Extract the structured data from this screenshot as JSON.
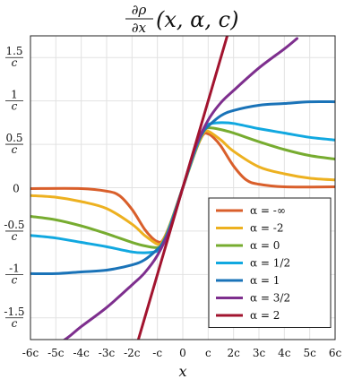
{
  "chart_data": {
    "type": "line",
    "title": {
      "num": "∂ρ",
      "den": "∂x",
      "rest": "(x, α, c)"
    },
    "xlabel": "x",
    "xlim": [
      -6,
      6
    ],
    "ylim": [
      -1.75,
      1.75
    ],
    "grid": true,
    "legend_position": "bottom-right",
    "x_ticks": [
      {
        "v": -6,
        "label": "-6c"
      },
      {
        "v": -5,
        "label": "-5c"
      },
      {
        "v": -4,
        "label": "-4c"
      },
      {
        "v": -3,
        "label": "-3c"
      },
      {
        "v": -2,
        "label": "-2c"
      },
      {
        "v": -1,
        "label": "-c"
      },
      {
        "v": 0,
        "label": "0"
      },
      {
        "v": 1,
        "label": "c"
      },
      {
        "v": 2,
        "label": "2c"
      },
      {
        "v": 3,
        "label": "3c"
      },
      {
        "v": 4,
        "label": "4c"
      },
      {
        "v": 5,
        "label": "5c"
      },
      {
        "v": 6,
        "label": "6c"
      }
    ],
    "y_ticks": [
      {
        "v": 1.5,
        "num": "1.5",
        "den": "c"
      },
      {
        "v": 1,
        "num": "1",
        "den": "c"
      },
      {
        "v": 0.5,
        "num": "0.5",
        "den": "c"
      },
      {
        "v": 0,
        "num": "0",
        "den": ""
      },
      {
        "v": -0.5,
        "num": "-0.5",
        "den": "c"
      },
      {
        "v": -1,
        "num": "-1",
        "den": "c"
      },
      {
        "v": -1.5,
        "num": "-1.5",
        "den": "c"
      }
    ],
    "series": [
      {
        "name": "α = -∞",
        "color": "#d95f2b",
        "x": [
          -6,
          -4,
          -3,
          -2.5,
          -2,
          -1.5,
          -1.2,
          -1,
          -0.8,
          -0.5,
          0,
          0.5,
          0.8,
          1,
          1.2,
          1.5,
          2,
          2.5,
          3,
          4,
          6
        ],
        "y": [
          -0.01,
          -0.01,
          -0.04,
          -0.09,
          -0.25,
          -0.48,
          -0.58,
          -0.62,
          -0.61,
          -0.42,
          0,
          0.42,
          0.61,
          0.62,
          0.58,
          0.48,
          0.25,
          0.09,
          0.04,
          0.01,
          0.01
        ]
      },
      {
        "name": "α = -2",
        "color": "#edb120",
        "x": [
          -6,
          -5,
          -4,
          -3,
          -2,
          -1.5,
          -1,
          -0.8,
          -0.5,
          0,
          0.5,
          0.8,
          1,
          1.5,
          2,
          3,
          4,
          5,
          6
        ],
        "y": [
          -0.09,
          -0.11,
          -0.16,
          -0.24,
          -0.42,
          -0.55,
          -0.65,
          -0.62,
          -0.42,
          0,
          0.42,
          0.62,
          0.65,
          0.55,
          0.42,
          0.24,
          0.16,
          0.11,
          0.09
        ]
      },
      {
        "name": "α = 0",
        "color": "#77ac30",
        "x": [
          -6,
          -5,
          -4,
          -3,
          -2,
          -1.5,
          -1,
          -0.8,
          -0.5,
          0,
          0.5,
          0.8,
          1,
          1.5,
          2,
          3,
          4,
          5,
          6
        ],
        "y": [
          -0.33,
          -0.37,
          -0.44,
          -0.53,
          -0.63,
          -0.67,
          -0.69,
          -0.64,
          -0.43,
          0,
          0.43,
          0.64,
          0.69,
          0.67,
          0.63,
          0.53,
          0.44,
          0.37,
          0.33
        ]
      },
      {
        "name": "α = 1/2",
        "color": "#11a8e0",
        "x": [
          -6,
          -5,
          -4,
          -3,
          -2,
          -1.5,
          -1,
          -0.8,
          -0.5,
          0,
          0.5,
          0.8,
          1,
          1.5,
          2,
          3,
          4,
          5,
          6
        ],
        "y": [
          -0.55,
          -0.58,
          -0.63,
          -0.68,
          -0.74,
          -0.75,
          -0.73,
          -0.66,
          -0.44,
          0,
          0.44,
          0.66,
          0.73,
          0.75,
          0.74,
          0.68,
          0.63,
          0.58,
          0.55
        ]
      },
      {
        "name": "α = 1",
        "color": "#1a73b8",
        "x": [
          -6,
          -5,
          -4,
          -3,
          -2,
          -1.5,
          -1,
          -0.8,
          -0.5,
          0,
          0.5,
          0.8,
          1,
          1.5,
          2,
          3,
          4,
          5,
          6
        ],
        "y": [
          -0.99,
          -0.99,
          -0.97,
          -0.95,
          -0.89,
          -0.83,
          -0.71,
          -0.64,
          -0.46,
          0,
          0.46,
          0.64,
          0.71,
          0.83,
          0.89,
          0.95,
          0.97,
          0.99,
          0.99
        ]
      },
      {
        "name": "α = 3/2",
        "color": "#7e2f8e",
        "x": [
          -5,
          -4.5,
          -4,
          -3,
          -2,
          -1.5,
          -1,
          -0.5,
          0,
          0.5,
          1,
          1.5,
          2,
          3,
          4,
          4.5
        ],
        "y": [
          -1.82,
          -1.72,
          -1.6,
          -1.38,
          -1.12,
          -0.98,
          -0.78,
          -0.47,
          0,
          0.47,
          0.78,
          0.98,
          1.12,
          1.38,
          1.6,
          1.72
        ]
      },
      {
        "name": "α = 2",
        "color": "#a2142f",
        "x": [
          -2.1,
          2.1
        ],
        "y": [
          -2.1,
          2.1
        ]
      }
    ]
  }
}
